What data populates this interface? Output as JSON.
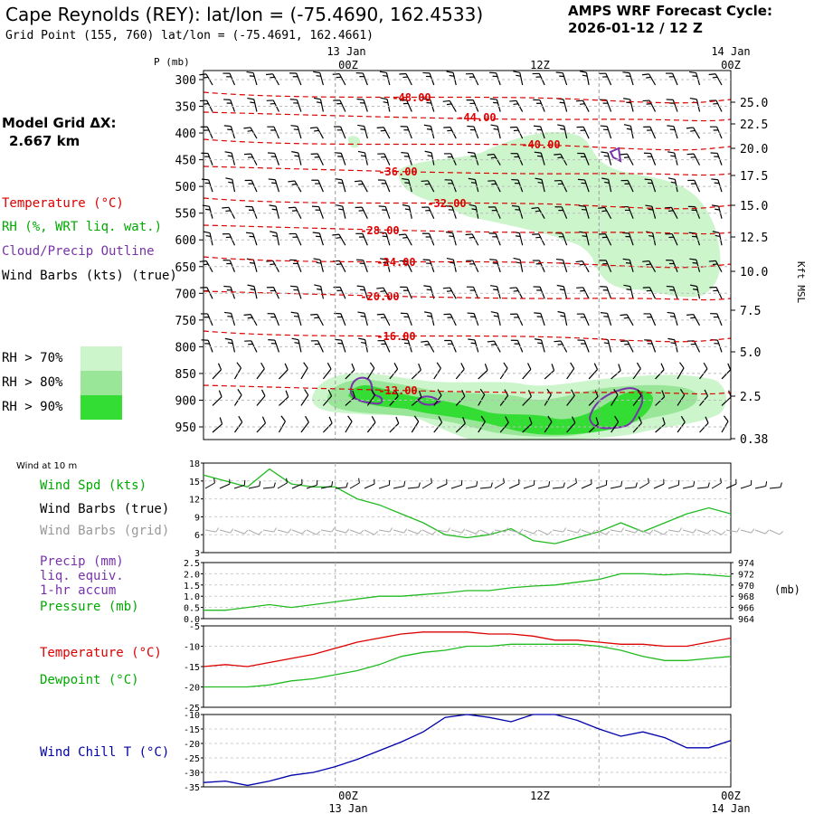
{
  "header": {
    "title": "Cape Reynolds (REY):  lat/lon = (-75.4690, 162.4533)",
    "subtitle": "Grid Point (155, 760) lat/lon = (-75.4691, 162.4661)",
    "cycle_line1": "AMPS WRF Forecast Cycle:",
    "cycle_line2": "2026-01-12 / 12  Z"
  },
  "left_panel": {
    "model_grid_label": "Model Grid ΔX:",
    "model_grid_value": "2.667 km",
    "temperature_label": "Temperature (°C)",
    "rh_label": "RH (%, WRT liq. wat.)",
    "cloud_label": "Cloud/Precip Outline",
    "wind_label": "Wind Barbs (kts) (true)",
    "rh_legend": [
      "RH > 70%",
      "RH > 80%",
      "RH > 90%"
    ],
    "wind10_title": "Wind at 10 m",
    "wind_spd_label": "Wind Spd (kts)",
    "wind_barbs_true_label": "Wind Barbs (true)",
    "wind_barbs_grid_label": "Wind Barbs (grid)",
    "precip_label_1": "Precip (mm)",
    "precip_label_2": "liq. equiv.",
    "precip_label_3": "1-hr accum",
    "pressure_label": "Pressure (mb)",
    "temp_label2": "Temperature (°C)",
    "dewpoint_label": "Dewpoint (°C)",
    "windchill_label": "Wind Chill T (°C)"
  },
  "colors": {
    "temperature": "#dd0000",
    "rh70": "#ccf5cc",
    "rh80": "#99e699",
    "rh90": "#33dd33",
    "cloud": "#7733aa",
    "wind_speed": "#22bb22",
    "dewpoint": "#22bb22",
    "pressure": "#22bb22",
    "wind_chill": "#0000aa",
    "grid_barbs": "#aaaaaa"
  },
  "chart_data": [
    {
      "type": "heatmap",
      "x_top_labels": [
        "13 Jan",
        "00Z",
        "12Z",
        "14 Jan",
        "00Z"
      ],
      "y_axis_title": "P (mb)",
      "pressure_ticks": [
        300,
        350,
        400,
        450,
        500,
        550,
        600,
        650,
        700,
        750,
        800,
        850,
        900,
        950
      ],
      "right_axis_title": "Kft MSL",
      "height_ticks": [
        "25.0",
        "22.5",
        "20.0",
        "17.5",
        "15.0",
        "12.5",
        "10.0",
        "7.5",
        "5.0",
        "2.5",
        "0.38"
      ],
      "isotherm_labels": [
        "-48.00",
        "-44.00",
        "-40.00",
        "-36.00",
        "-32.00",
        "-28.00",
        "-24.00",
        "-20.00",
        "-16.00",
        "-12.00"
      ],
      "isotherm_values": [
        -48,
        -44,
        -40,
        -36,
        -32,
        -28,
        -24,
        -20,
        -16,
        -12
      ]
    },
    {
      "type": "line",
      "name": "wind_speed",
      "yticks": [
        3,
        6,
        9,
        12,
        15,
        18
      ],
      "ylim": [
        3,
        18
      ],
      "x_hours": [
        0,
        2,
        4,
        6,
        8,
        10,
        12,
        14,
        16,
        18,
        20,
        22,
        24,
        26,
        28,
        30,
        32,
        34,
        36,
        38,
        40,
        42,
        44,
        46,
        48
      ],
      "values": [
        16,
        15,
        14,
        17,
        14.5,
        14,
        14,
        12,
        11,
        9.5,
        8,
        6,
        5.5,
        6,
        7,
        5,
        4.5,
        5.5,
        6.5,
        8,
        6.5,
        8,
        9.5,
        10.5,
        9.5
      ]
    },
    {
      "type": "line",
      "name": "precip_pressure",
      "precip_yticks": [
        "0.0",
        "0.5",
        "1.0",
        "1.5",
        "2.0",
        "2.5"
      ],
      "pressure_yticks": [
        964,
        966,
        968,
        970,
        972,
        974
      ],
      "pressure_unit": "(mb)",
      "x_hours": [
        0,
        2,
        4,
        6,
        8,
        10,
        12,
        14,
        16,
        18,
        20,
        22,
        24,
        26,
        28,
        30,
        32,
        34,
        36,
        38,
        40,
        42,
        44,
        46,
        48
      ],
      "pressure": [
        965.5,
        965.5,
        966,
        966.5,
        966,
        966.5,
        967,
        967.5,
        968,
        968,
        968.3,
        968.6,
        969,
        969,
        969.5,
        969.8,
        970,
        970.5,
        971,
        972,
        972,
        971.8,
        972,
        971.8,
        971.5
      ]
    },
    {
      "type": "line",
      "name": "temperature_dewpoint",
      "yticks": [
        -5,
        -10,
        -15,
        -20,
        -25
      ],
      "ylim": [
        -25,
        -5
      ],
      "x_hours": [
        0,
        2,
        4,
        6,
        8,
        10,
        12,
        14,
        16,
        18,
        20,
        22,
        24,
        26,
        28,
        30,
        32,
        34,
        36,
        38,
        40,
        42,
        44,
        46,
        48
      ],
      "temperature": [
        -15,
        -14.5,
        -15,
        -14,
        -13,
        -12,
        -10.5,
        -9,
        -8,
        -7,
        -6.5,
        -6.5,
        -6.5,
        -7,
        -7,
        -7.5,
        -8.5,
        -8.5,
        -9,
        -9.5,
        -9.5,
        -10,
        -10,
        -9,
        -8
      ],
      "dewpoint": [
        -20,
        -20,
        -20,
        -19.5,
        -18.5,
        -18,
        -17,
        -16,
        -14.5,
        -12.5,
        -11.5,
        -11,
        -10,
        -10,
        -9.5,
        -9.5,
        -9.5,
        -9.5,
        -10,
        -11,
        -12.5,
        -13.5,
        -13.5,
        -13,
        -12.5
      ]
    },
    {
      "type": "line",
      "name": "wind_chill",
      "yticks": [
        -10,
        -15,
        -20,
        -25,
        -30,
        -35
      ],
      "ylim": [
        -35,
        -10
      ],
      "x_labels": [
        "00Z",
        "13 Jan",
        "12Z",
        "00Z",
        "14 Jan"
      ],
      "x_hours": [
        0,
        2,
        4,
        6,
        8,
        10,
        12,
        14,
        16,
        18,
        20,
        22,
        24,
        26,
        28,
        30,
        32,
        34,
        36,
        38,
        40,
        42,
        44,
        46,
        48
      ],
      "values": [
        -33.5,
        -33,
        -34.5,
        -33,
        -31,
        -30,
        -28,
        -25.5,
        -22.5,
        -19.5,
        -16,
        -11,
        -10,
        -11,
        -12.5,
        -10,
        -10,
        -12,
        -15,
        -17.5,
        -16,
        -18,
        -21.5,
        -21.5,
        -19
      ]
    }
  ]
}
